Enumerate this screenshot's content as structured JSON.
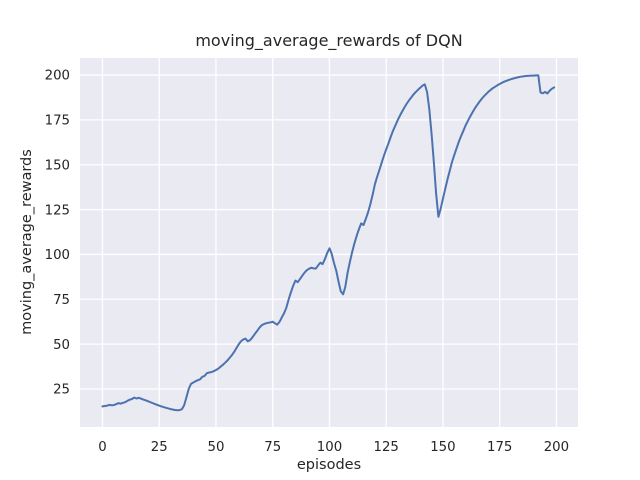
{
  "chart_data": {
    "type": "line",
    "title": "moving_average_rewards of DQN",
    "xlabel": "episodes",
    "ylabel": "moving_average_rewards",
    "x_ticks": [
      0,
      25,
      50,
      75,
      100,
      125,
      150,
      175,
      200
    ],
    "y_ticks": [
      25,
      50,
      75,
      100,
      125,
      150,
      175,
      200
    ],
    "xlim": [
      -9.9,
      209.5
    ],
    "ylim": [
      3.8,
      209.5
    ],
    "grid": true,
    "legend": "none",
    "style": {
      "figure_bg": "#ffffff",
      "plot_bg": "#eaeaf2",
      "grid_color": "#ffffff",
      "line_color": "#4c72b0",
      "text_color": "#262626",
      "line_width": 2
    },
    "series": [
      {
        "name": "moving_average_rewards",
        "points": [
          [
            0,
            15.3
          ],
          [
            1,
            15.5
          ],
          [
            2,
            15.7
          ],
          [
            3,
            16.1
          ],
          [
            4,
            15.9
          ],
          [
            5,
            16.0
          ],
          [
            6,
            16.5
          ],
          [
            7,
            17.1
          ],
          [
            8,
            16.8
          ],
          [
            9,
            17.3
          ],
          [
            10,
            17.6
          ],
          [
            11,
            18.4
          ],
          [
            12,
            19.0
          ],
          [
            13,
            19.4
          ],
          [
            14,
            20.2
          ],
          [
            15,
            19.7
          ],
          [
            16,
            20.1
          ],
          [
            17,
            19.6
          ],
          [
            18,
            19.1
          ],
          [
            19,
            18.7
          ],
          [
            20,
            18.2
          ],
          [
            22,
            17.2
          ],
          [
            24,
            16.2
          ],
          [
            26,
            15.3
          ],
          [
            28,
            14.5
          ],
          [
            30,
            13.8
          ],
          [
            32,
            13.3
          ],
          [
            33,
            13.1
          ],
          [
            34,
            13.2
          ],
          [
            35,
            13.7
          ],
          [
            36,
            16.0
          ],
          [
            37,
            20.5
          ],
          [
            38,
            25.0
          ],
          [
            39,
            27.8
          ],
          [
            40,
            28.6
          ],
          [
            41,
            29.3
          ],
          [
            42,
            29.9
          ],
          [
            43,
            30.4
          ],
          [
            44,
            31.8
          ],
          [
            45,
            32.3
          ],
          [
            46,
            33.8
          ],
          [
            47,
            34.2
          ],
          [
            48,
            34.4
          ],
          [
            49,
            34.9
          ],
          [
            50,
            35.6
          ],
          [
            51,
            36.3
          ],
          [
            52,
            37.4
          ],
          [
            53,
            38.4
          ],
          [
            54,
            39.6
          ],
          [
            55,
            40.8
          ],
          [
            56,
            42.3
          ],
          [
            57,
            43.9
          ],
          [
            58,
            45.6
          ],
          [
            59,
            47.8
          ],
          [
            60,
            49.9
          ],
          [
            61,
            51.5
          ],
          [
            62,
            52.6
          ],
          [
            63,
            53.1
          ],
          [
            64,
            51.6
          ],
          [
            65,
            52.2
          ],
          [
            66,
            53.7
          ],
          [
            67,
            55.4
          ],
          [
            68,
            57.1
          ],
          [
            69,
            58.9
          ],
          [
            70,
            60.4
          ],
          [
            71,
            61.1
          ],
          [
            72,
            61.6
          ],
          [
            73,
            61.9
          ],
          [
            74,
            62.1
          ],
          [
            75,
            62.5
          ],
          [
            76,
            61.6
          ],
          [
            77,
            60.9
          ],
          [
            78,
            62.4
          ],
          [
            79,
            64.9
          ],
          [
            80,
            67.3
          ],
          [
            81,
            70.2
          ],
          [
            82,
            74.8
          ],
          [
            83,
            78.9
          ],
          [
            84,
            82.4
          ],
          [
            85,
            85.4
          ],
          [
            86,
            84.6
          ],
          [
            87,
            86.2
          ],
          [
            88,
            88.1
          ],
          [
            89,
            89.8
          ],
          [
            90,
            91.2
          ],
          [
            91,
            92.0
          ],
          [
            92,
            92.6
          ],
          [
            93,
            92.2
          ],
          [
            94,
            92.1
          ],
          [
            95,
            93.9
          ],
          [
            96,
            95.4
          ],
          [
            97,
            94.6
          ],
          [
            98,
            97.4
          ],
          [
            99,
            100.8
          ],
          [
            100,
            103.4
          ],
          [
            101,
            100.3
          ],
          [
            102,
            95.2
          ],
          [
            103,
            90.8
          ],
          [
            104,
            84.9
          ],
          [
            105,
            79.4
          ],
          [
            106,
            77.8
          ],
          [
            107,
            81.9
          ],
          [
            108,
            89.8
          ],
          [
            109,
            95.9
          ],
          [
            110,
            101.4
          ],
          [
            111,
            106.1
          ],
          [
            112,
            110.4
          ],
          [
            113,
            114.2
          ],
          [
            114,
            117.3
          ],
          [
            115,
            116.4
          ],
          [
            116,
            119.8
          ],
          [
            117,
            123.4
          ],
          [
            118,
            127.9
          ],
          [
            119,
            133.2
          ],
          [
            120,
            139.1
          ],
          [
            121,
            143.2
          ],
          [
            122,
            147.1
          ],
          [
            123,
            151.2
          ],
          [
            124,
            155.0
          ],
          [
            125,
            158.6
          ],
          [
            126,
            162.0
          ],
          [
            127,
            165.5
          ],
          [
            128,
            168.9
          ],
          [
            129,
            171.8
          ],
          [
            130,
            174.6
          ],
          [
            131,
            177.2
          ],
          [
            132,
            179.6
          ],
          [
            133,
            181.9
          ],
          [
            134,
            183.9
          ],
          [
            135,
            185.8
          ],
          [
            136,
            187.5
          ],
          [
            137,
            189.1
          ],
          [
            138,
            190.5
          ],
          [
            139,
            191.8
          ],
          [
            140,
            192.9
          ],
          [
            141,
            194.1
          ],
          [
            142,
            194.8
          ],
          [
            143,
            190.5
          ],
          [
            144,
            181.0
          ],
          [
            145,
            167.0
          ],
          [
            146,
            151.0
          ],
          [
            147,
            134.0
          ],
          [
            148,
            121.0
          ],
          [
            149,
            125.5
          ],
          [
            150,
            131.0
          ],
          [
            151,
            136.5
          ],
          [
            152,
            141.8
          ],
          [
            153,
            146.8
          ],
          [
            154,
            151.5
          ],
          [
            155,
            155.5
          ],
          [
            156,
            159.2
          ],
          [
            157,
            162.8
          ],
          [
            158,
            166.0
          ],
          [
            159,
            169.0
          ],
          [
            160,
            171.9
          ],
          [
            161,
            174.5
          ],
          [
            162,
            176.9
          ],
          [
            163,
            179.2
          ],
          [
            164,
            181.3
          ],
          [
            165,
            183.2
          ],
          [
            166,
            185.0
          ],
          [
            167,
            186.6
          ],
          [
            168,
            188.1
          ],
          [
            169,
            189.4
          ],
          [
            170,
            190.6
          ],
          [
            171,
            191.7
          ],
          [
            172,
            192.7
          ],
          [
            173,
            193.5
          ],
          [
            174,
            194.3
          ],
          [
            175,
            195.0
          ],
          [
            176,
            195.7
          ],
          [
            177,
            196.3
          ],
          [
            178,
            196.8
          ],
          [
            179,
            197.3
          ],
          [
            180,
            197.7
          ],
          [
            181,
            198.1
          ],
          [
            182,
            198.4
          ],
          [
            183,
            198.7
          ],
          [
            184,
            199.0
          ],
          [
            185,
            199.2
          ],
          [
            186,
            199.4
          ],
          [
            187,
            199.5
          ],
          [
            188,
            199.6
          ],
          [
            189,
            199.7
          ],
          [
            190,
            199.7
          ],
          [
            191,
            199.8
          ],
          [
            192,
            199.8
          ],
          [
            193,
            190.3
          ],
          [
            194,
            189.8
          ],
          [
            195,
            190.6
          ],
          [
            196,
            189.7
          ],
          [
            197,
            191.2
          ],
          [
            198,
            192.4
          ],
          [
            199,
            193.1
          ]
        ]
      }
    ]
  }
}
